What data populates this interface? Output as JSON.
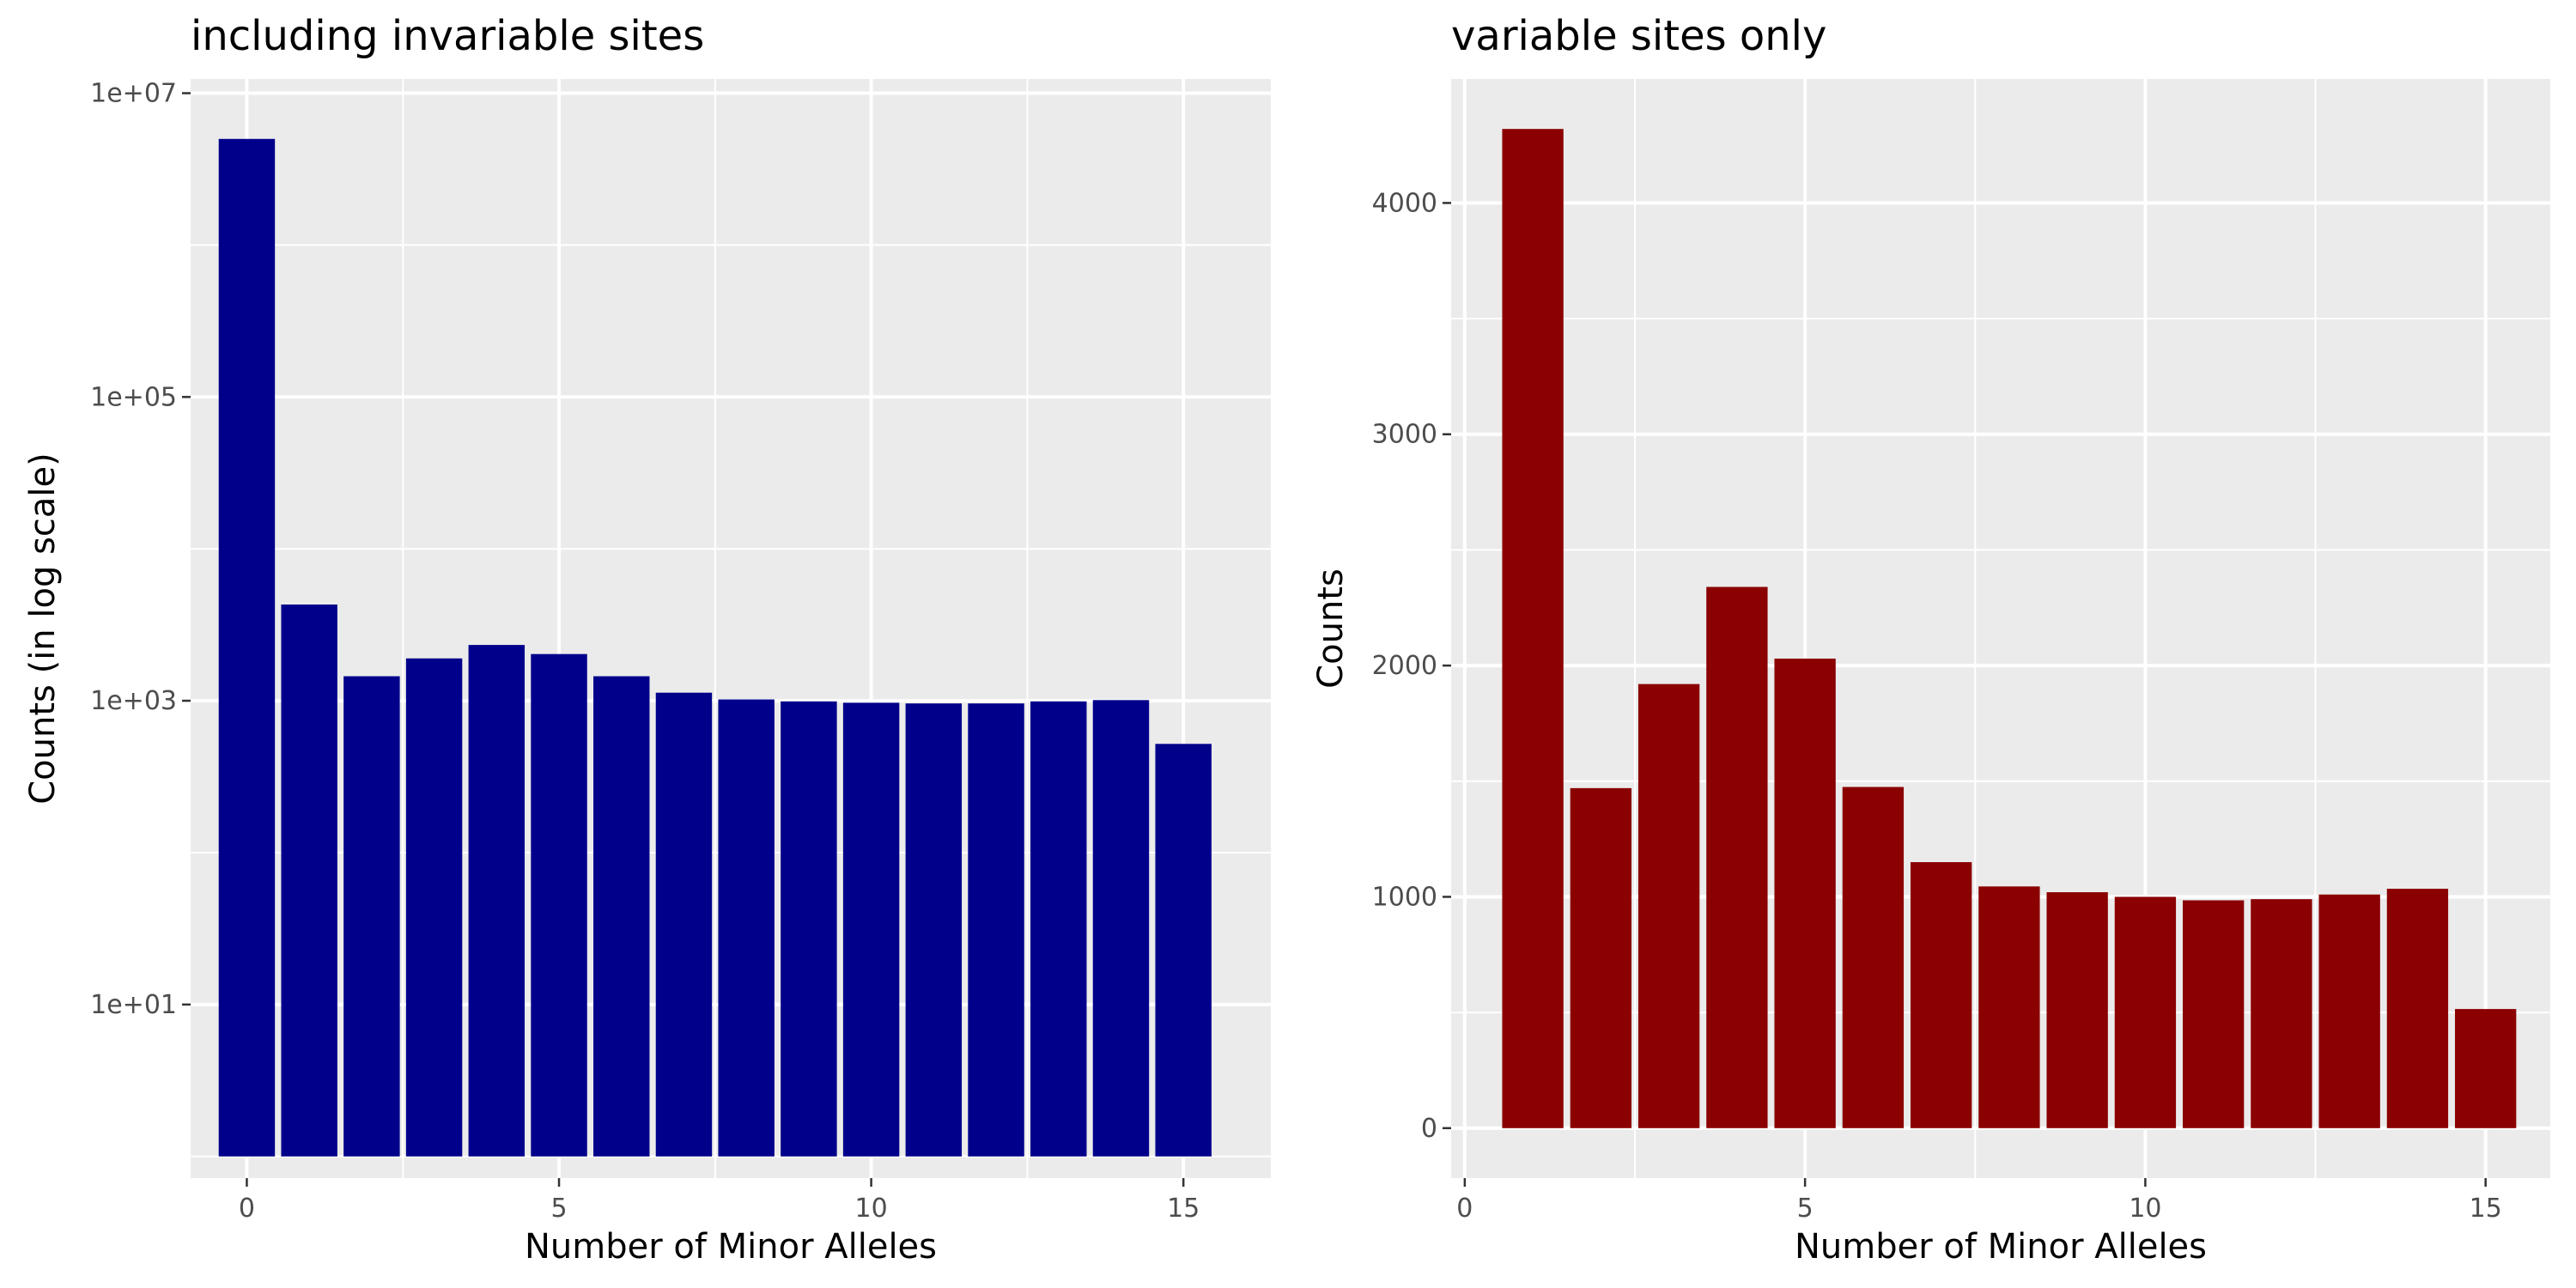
{
  "chart_data": [
    {
      "type": "bar",
      "title": "including invariable sites",
      "xlabel": "Number of Minor Alleles",
      "ylabel": "Counts (in log scale)",
      "y_scale": "log10",
      "x": [
        0,
        1,
        2,
        3,
        4,
        5,
        6,
        7,
        8,
        9,
        10,
        11,
        12,
        13,
        14,
        15
      ],
      "values": [
        5000000,
        4300,
        1450,
        1900,
        2330,
        2030,
        1450,
        1130,
        1020,
        990,
        970,
        960,
        960,
        990,
        1010,
        520
      ],
      "xlim": [
        -0.9,
        16.4
      ],
      "ylim": [
        0.72,
        12400000
      ],
      "x_ticks": [
        0,
        5,
        10,
        15
      ],
      "x_tick_labels": [
        "0",
        "5",
        "10",
        "15"
      ],
      "y_ticks": [
        10,
        1000,
        100000,
        10000000
      ],
      "y_tick_labels": [
        "1e+01",
        "1e+03",
        "1e+05",
        "1e+07"
      ],
      "bar_color": "#00008B",
      "grid": true,
      "panel_background": "#EBEBEB"
    },
    {
      "type": "bar",
      "title": "variable sites only",
      "xlabel": "Number of Minor Alleles",
      "ylabel": "Counts",
      "y_scale": "linear",
      "x": [
        1,
        2,
        3,
        4,
        5,
        6,
        7,
        8,
        9,
        10,
        11,
        12,
        13,
        14,
        15
      ],
      "values": [
        4320,
        1470,
        1920,
        2340,
        2030,
        1475,
        1150,
        1045,
        1020,
        1000,
        985,
        990,
        1010,
        1035,
        515
      ],
      "xlim": [
        -0.2,
        15.95
      ],
      "ylim": [
        -216,
        4536
      ],
      "x_ticks": [
        0,
        5,
        10,
        15
      ],
      "x_tick_labels": [
        "0",
        "5",
        "10",
        "15"
      ],
      "y_ticks": [
        0,
        1000,
        2000,
        3000,
        4000
      ],
      "y_tick_labels": [
        "0",
        "1000",
        "2000",
        "3000",
        "4000"
      ],
      "bar_color": "#8B0000",
      "grid": true,
      "panel_background": "#EBEBEB"
    }
  ]
}
